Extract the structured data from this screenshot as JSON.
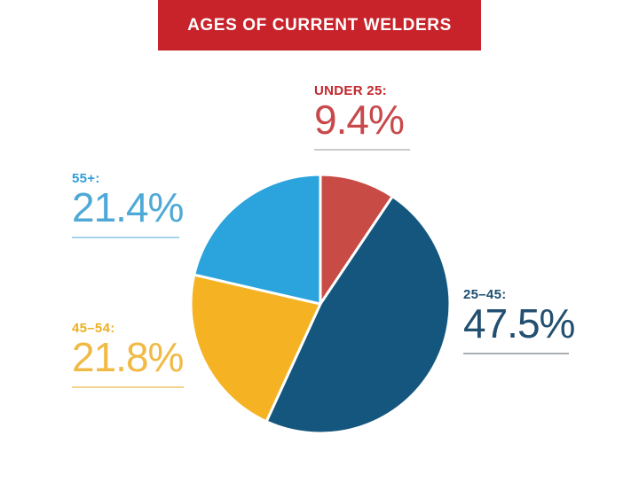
{
  "header": {
    "title": "AGES OF CURRENT WELDERS",
    "banner_color": "#C8232A",
    "text_color": "#FFFFFF"
  },
  "chart_data": {
    "type": "pie",
    "title": "AGES OF CURRENT WELDERS",
    "start_angle_deg": 0,
    "clockwise": true,
    "divider_color": "#FFFFFF",
    "slices": [
      {
        "label": "UNDER 25:",
        "display": "9.4%",
        "value": 9.4,
        "color": "#C84B45",
        "label_color": "#C2272D",
        "value_color": "#C8494C",
        "underline_color": "#CBCBCB"
      },
      {
        "label": "25–45:",
        "display": "47.5%",
        "value": 47.5,
        "color": "#14567D",
        "label_color": "#1D4D70",
        "value_color": "#234F70",
        "underline_color": "#A9AEB3"
      },
      {
        "label": "45–54:",
        "display": "21.8%",
        "value": 21.8,
        "color": "#F5B324",
        "label_color": "#EFAF1F",
        "value_color": "#F0BA45",
        "underline_color": "#F2D490"
      },
      {
        "label": "55+:",
        "display": "21.4%",
        "value": 21.4,
        "color": "#2BA3DC",
        "label_color": "#2F9FD8",
        "value_color": "#4FA9D6",
        "underline_color": "#A6D2EA"
      }
    ]
  }
}
